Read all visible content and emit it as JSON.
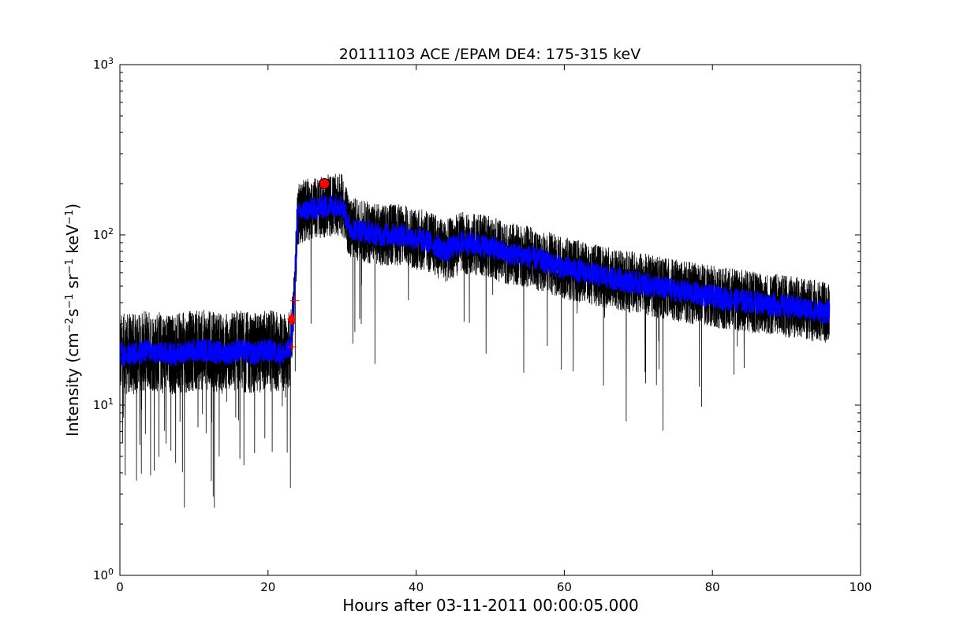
{
  "chart_data": {
    "type": "line",
    "title": "20111103 ACE /EPAM DE4: 175-315 keV",
    "xlabel": "Hours after 03-11-2011 00:00:05.000",
    "ylabel_text": "Intensity (cm",
    "ylabel_sup1": "−2",
    "ylabel_s": "s",
    "ylabel_sup2": "−1",
    "ylabel_sr": " sr",
    "ylabel_sup3": "−1",
    "ylabel_kev": " keV",
    "ylabel_sup4": "−1",
    "ylabel_close": ")",
    "xlim": [
      0,
      100
    ],
    "ylim": [
      1,
      1000
    ],
    "yscale": "log",
    "xticks": [
      {
        "value": 0,
        "label": "0"
      },
      {
        "value": 20,
        "label": "20"
      },
      {
        "value": 40,
        "label": "40"
      },
      {
        "value": 60,
        "label": "60"
      },
      {
        "value": 80,
        "label": "80"
      },
      {
        "value": 100,
        "label": "100"
      }
    ],
    "yticks": [
      {
        "value": 1,
        "base": "10",
        "exp": "0"
      },
      {
        "value": 10,
        "base": "10",
        "exp": "1"
      },
      {
        "value": 100,
        "base": "10",
        "exp": "2"
      },
      {
        "value": 1000,
        "base": "10",
        "exp": "3"
      }
    ],
    "grid": false,
    "series": [
      {
        "role": "raw data (black)",
        "color": "#000000",
        "x": [
          0,
          2,
          4,
          6,
          8,
          10,
          12,
          14,
          16,
          18,
          20,
          22,
          23,
          23.5,
          24,
          25,
          27,
          29,
          30,
          31,
          33,
          35,
          38,
          40,
          42,
          44,
          46,
          48,
          50,
          52,
          55,
          58,
          60,
          63,
          66,
          70,
          74,
          78,
          82,
          86,
          90,
          94,
          95.8
        ],
        "y": [
          20,
          20,
          21,
          20,
          20,
          21,
          21,
          20,
          21,
          20,
          21,
          20,
          21,
          40,
          130,
          140,
          145,
          150,
          150,
          110,
          105,
          100,
          100,
          95,
          90,
          80,
          90,
          88,
          85,
          78,
          75,
          68,
          64,
          60,
          56,
          52,
          48,
          45,
          42,
          40,
          38,
          36,
          35
        ]
      },
      {
        "role": "smoothed (blue)",
        "color": "#0000ff",
        "x": [
          0,
          2,
          4,
          6,
          8,
          10,
          12,
          14,
          16,
          18,
          20,
          22,
          23,
          23.5,
          24,
          25,
          27,
          29,
          30,
          31,
          33,
          35,
          38,
          40,
          42,
          44,
          46,
          48,
          50,
          52,
          55,
          58,
          60,
          63,
          66,
          70,
          74,
          78,
          82,
          86,
          90,
          94,
          95.8
        ],
        "y": [
          20,
          20,
          21,
          20,
          20,
          21,
          21,
          20,
          21,
          20,
          21,
          20,
          21,
          40,
          130,
          140,
          145,
          150,
          150,
          110,
          105,
          100,
          100,
          95,
          90,
          80,
          90,
          88,
          85,
          78,
          75,
          68,
          64,
          60,
          56,
          52,
          48,
          45,
          42,
          40,
          38,
          36,
          35
        ]
      }
    ],
    "markers": [
      {
        "kind": "circle",
        "color": "#ff0000",
        "x": 27.6,
        "y": 200
      },
      {
        "kind": "diamond",
        "color": "#ff0000",
        "x": 23.2,
        "y": 32
      },
      {
        "kind": "plus",
        "color": "#ff0000",
        "x": 23.6,
        "y": 41
      },
      {
        "kind": "plus",
        "color": "#ff0000",
        "x": 23.2,
        "y": 22
      }
    ]
  }
}
